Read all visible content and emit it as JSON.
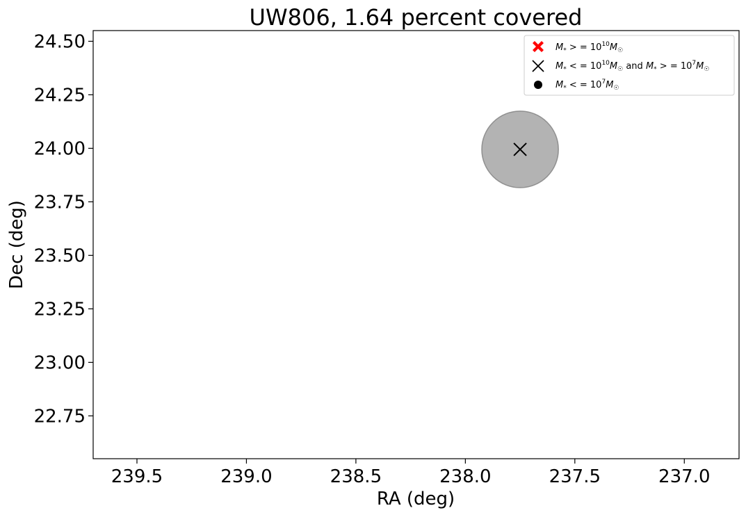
{
  "chart_data": {
    "type": "scatter",
    "title": "UW806, 1.64 percent covered",
    "xlabel": "RA (deg)",
    "ylabel": "Dec (deg)",
    "xlim": [
      239.7,
      236.75
    ],
    "ylim": [
      22.55,
      24.55
    ],
    "x_inverted": true,
    "x_ticks": [
      239.5,
      239.0,
      238.5,
      238.0,
      237.5,
      237.0
    ],
    "x_tick_labels": [
      "239.5",
      "239.0",
      "238.5",
      "238.0",
      "237.5",
      "237.0"
    ],
    "y_ticks": [
      22.75,
      23.0,
      23.25,
      23.5,
      23.75,
      24.0,
      24.25,
      24.5
    ],
    "y_tick_labels": [
      "22.75",
      "23.00",
      "23.25",
      "23.50",
      "23.75",
      "24.00",
      "24.25",
      "24.50"
    ],
    "grid": false,
    "legend_position": "top-right",
    "legend": [
      {
        "marker": "filled-x",
        "color": "#ff0000",
        "label": "M* > = 10^10 M☉"
      },
      {
        "marker": "x",
        "color": "#000000",
        "label": "M* < = 10^10 M☉ and M* > = 10^7 M☉"
      },
      {
        "marker": "dot",
        "color": "#000000",
        "label": "M* < = 10^7 M☉"
      }
    ],
    "coverage_circles": [
      {
        "ra": 237.75,
        "dec": 23.995,
        "radius_deg": 0.175,
        "color": "#808080",
        "alpha": 0.6
      }
    ],
    "points": [
      {
        "ra": 237.75,
        "dec": 23.995,
        "marker": "x",
        "color": "#000000"
      }
    ]
  }
}
